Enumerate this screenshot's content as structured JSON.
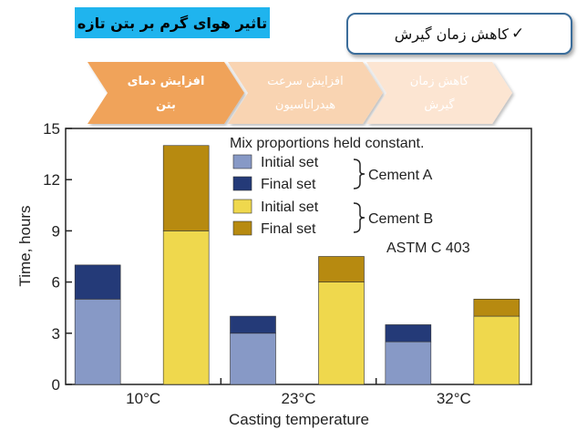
{
  "header": {
    "title": "تاثیر هوای گرم بر بتن تازه",
    "badge_check": "✓",
    "badge_text": "کاهش زمان گیرش"
  },
  "process_flow": {
    "steps": [
      {
        "line1": "افزایش دمای",
        "line2": "بتن"
      },
      {
        "line1": "افزایش سرعت",
        "line2": "هیدراتاسیون"
      },
      {
        "line1": "کاهش زمان",
        "line2": "گیرش"
      }
    ],
    "colors": [
      "#f0a35a",
      "#f9d4b2",
      "#fce5d2"
    ]
  },
  "chart_data": {
    "type": "bar",
    "subtype": "stacked",
    "categories": [
      "10°C",
      "23°C",
      "32°C"
    ],
    "xlabel": "Casting temperature",
    "ylabel": "Time, hours",
    "ylim": [
      0,
      15
    ],
    "yticks": [
      0,
      3,
      6,
      9,
      12,
      15
    ],
    "grid": false,
    "annotation_top": "Mix proportions held constant.",
    "annotation_standard": "ASTM C 403",
    "groups": [
      {
        "name": "Cement A",
        "initial_set": [
          5,
          3,
          2.5
        ],
        "final_set": [
          7,
          4,
          3.5
        ]
      },
      {
        "name": "Cement B",
        "initial_set": [
          9,
          6,
          4
        ],
        "final_set": [
          14,
          7.5,
          5
        ]
      }
    ],
    "legend": [
      {
        "label": "Initial set",
        "color": "#8799c6"
      },
      {
        "label": "Final set",
        "color": "#243a78"
      },
      {
        "label": "Initial set",
        "color": "#efd84d"
      },
      {
        "label": "Final set",
        "color": "#b78a10"
      }
    ],
    "colors": {
      "a_initial": "#8799c6",
      "a_final": "#243a78",
      "b_initial": "#efd84d",
      "b_final": "#b78a10"
    }
  }
}
